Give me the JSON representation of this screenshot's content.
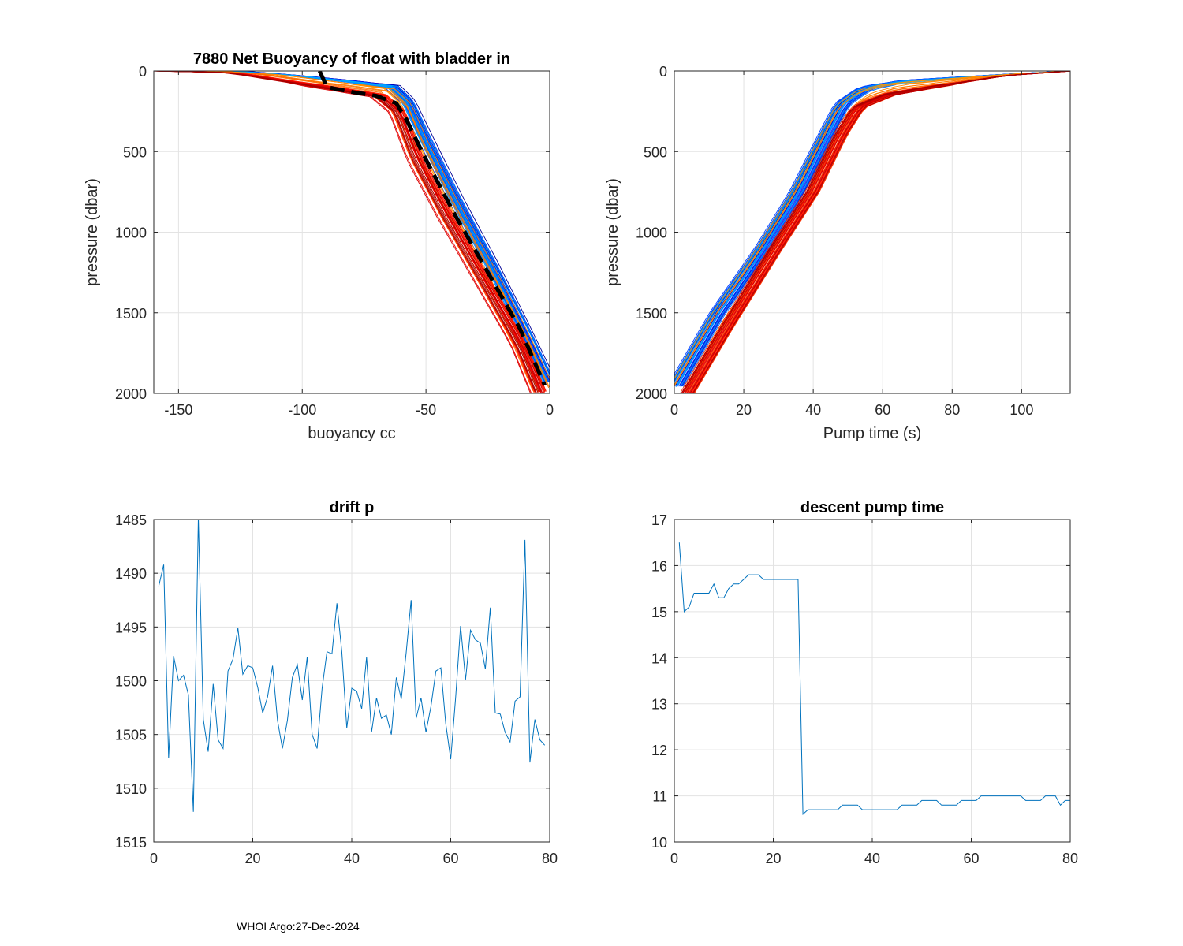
{
  "footer": "WHOI Argo:27-Dec-2024",
  "chart_data": [
    {
      "type": "line",
      "title": "7880 Net Buoyancy of float with bladder in",
      "xlabel": "buoyancy cc",
      "ylabel": "pressure (dbar)",
      "xlim": [
        -160,
        0
      ],
      "ylim": [
        0,
        2000
      ],
      "y_reversed": true,
      "xticks": [
        -150,
        -100,
        -50,
        0
      ],
      "yticks": [
        0,
        500,
        1000,
        1500,
        2000
      ],
      "grid": true,
      "series_description": "~80 profile curves colored by cycle (blue early to red late) with a black dashed reference curve",
      "reference_curve": {
        "name": "reference",
        "color": "#000000",
        "style": "dashed",
        "x": [
          -93,
          -90,
          -80,
          -70,
          -62,
          -58,
          -50,
          -38,
          -25,
          -12,
          -2
        ],
        "y": [
          0,
          100,
          130,
          155,
          200,
          300,
          550,
          900,
          1250,
          1600,
          1950
        ]
      },
      "template_curves": {
        "blue": {
          "x": [
            -125,
            -100,
            -80,
            -63,
            -57,
            -50,
            -37,
            -23,
            -10,
            0
          ],
          "y": [
            0,
            30,
            60,
            90,
            180,
            400,
            800,
            1200,
            1600,
            1920
          ]
        },
        "orange": {
          "x": [
            -160,
            -130,
            -90,
            -70,
            -62,
            -55,
            -43,
            -28,
            -13,
            -5
          ],
          "y": [
            0,
            10,
            110,
            160,
            260,
            550,
            900,
            1300,
            1700,
            2000
          ]
        }
      }
    },
    {
      "type": "line",
      "title": "",
      "xlabel": "Pump time (s)",
      "ylabel": "pressure (dbar)",
      "xlim": [
        0,
        114
      ],
      "ylim": [
        0,
        2000
      ],
      "y_reversed": true,
      "xticks": [
        0,
        20,
        40,
        60,
        80,
        100
      ],
      "yticks": [
        0,
        500,
        1000,
        1500,
        2000
      ],
      "grid": true,
      "series_description": "~80 profile curves colored by cycle (blue early to red late)",
      "template_curves": {
        "blue": {
          "x": [
            0,
            12,
            25,
            35,
            42,
            48,
            55,
            65,
            80,
            100,
            114
          ],
          "y": [
            1950,
            1500,
            1100,
            750,
            450,
            200,
            100,
            60,
            40,
            15,
            0
          ]
        },
        "orange": {
          "x": [
            4,
            15,
            28,
            40,
            48,
            53,
            62,
            75,
            95,
            114
          ],
          "y": [
            2000,
            1600,
            1150,
            750,
            400,
            230,
            150,
            100,
            30,
            0
          ]
        }
      }
    },
    {
      "type": "line",
      "title": "drift p",
      "xlabel": "",
      "ylabel": "",
      "xlim": [
        0,
        80
      ],
      "ylim": [
        1485,
        1515
      ],
      "y_reversed": true,
      "xticks": [
        0,
        20,
        40,
        60,
        80
      ],
      "yticks": [
        1485,
        1490,
        1495,
        1500,
        1505,
        1510,
        1515
      ],
      "grid": true,
      "series": [
        {
          "name": "drift p",
          "color": "#0072BD",
          "x": [
            1,
            2,
            3,
            4,
            5,
            6,
            7,
            8,
            9,
            10,
            11,
            12,
            13,
            14,
            15,
            16,
            17,
            18,
            19,
            20,
            21,
            22,
            23,
            24,
            25,
            26,
            27,
            28,
            29,
            30,
            31,
            32,
            33,
            34,
            35,
            36,
            37,
            38,
            39,
            40,
            41,
            42,
            43,
            44,
            45,
            46,
            47,
            48,
            49,
            50,
            51,
            52,
            53,
            54,
            55,
            56,
            57,
            58,
            59,
            60,
            61,
            62,
            63,
            64,
            65,
            66,
            67,
            68,
            69,
            70,
            71,
            72,
            73,
            74,
            75,
            76,
            77,
            78,
            79
          ],
          "values": [
            1491.2,
            1489.2,
            1507.2,
            1497.7,
            1500.0,
            1499.5,
            1501.3,
            1512.2,
            1484.8,
            1503.6,
            1506.6,
            1500.3,
            1505.5,
            1506.3,
            1499.1,
            1498.0,
            1495.1,
            1499.4,
            1498.6,
            1498.8,
            1500.6,
            1503.0,
            1501.5,
            1498.6,
            1503.7,
            1506.3,
            1503.7,
            1499.7,
            1498.5,
            1501.8,
            1497.8,
            1505.0,
            1506.3,
            1500.7,
            1497.3,
            1497.5,
            1492.8,
            1497.3,
            1504.4,
            1500.7,
            1501.0,
            1502.6,
            1497.8,
            1504.8,
            1501.6,
            1503.5,
            1503.2,
            1505.0,
            1499.7,
            1501.7,
            1497.4,
            1492.5,
            1503.5,
            1501.6,
            1504.8,
            1502.4,
            1499.1,
            1498.8,
            1504.0,
            1507.3,
            1501.5,
            1494.9,
            1499.9,
            1495.3,
            1496.2,
            1496.5,
            1498.9,
            1493.2,
            1503.0,
            1503.1,
            1504.8,
            1505.7,
            1501.9,
            1501.5,
            1486.9,
            1507.6,
            1503.6,
            1505.5,
            1506.0
          ]
        }
      ]
    },
    {
      "type": "line",
      "title": "descent pump time",
      "xlabel": "",
      "ylabel": "",
      "xlim": [
        0,
        80
      ],
      "ylim": [
        10,
        17
      ],
      "xticks": [
        0,
        20,
        40,
        60,
        80
      ],
      "yticks": [
        10,
        11,
        12,
        13,
        14,
        15,
        16,
        17
      ],
      "grid": true,
      "series": [
        {
          "name": "descent pump time",
          "color": "#0072BD",
          "x": [
            1,
            2,
            3,
            4,
            5,
            6,
            7,
            8,
            9,
            10,
            11,
            12,
            13,
            14,
            15,
            16,
            17,
            18,
            19,
            20,
            21,
            22,
            23,
            24,
            25,
            26,
            27,
            28,
            29,
            30,
            31,
            32,
            33,
            34,
            35,
            36,
            37,
            38,
            39,
            40,
            41,
            42,
            43,
            44,
            45,
            46,
            47,
            48,
            49,
            50,
            51,
            52,
            53,
            54,
            55,
            56,
            57,
            58,
            59,
            60,
            61,
            62,
            63,
            64,
            65,
            66,
            67,
            68,
            69,
            70,
            71,
            72,
            73,
            74,
            75,
            76,
            77,
            78,
            79,
            80
          ],
          "values": [
            16.5,
            15.0,
            15.1,
            15.4,
            15.4,
            15.4,
            15.4,
            15.6,
            15.3,
            15.3,
            15.5,
            15.6,
            15.6,
            15.7,
            15.8,
            15.8,
            15.8,
            15.7,
            15.7,
            15.7,
            15.7,
            15.7,
            15.7,
            15.7,
            15.7,
            10.6,
            10.7,
            10.7,
            10.7,
            10.7,
            10.7,
            10.7,
            10.7,
            10.8,
            10.8,
            10.8,
            10.8,
            10.7,
            10.7,
            10.7,
            10.7,
            10.7,
            10.7,
            10.7,
            10.7,
            10.8,
            10.8,
            10.8,
            10.8,
            10.9,
            10.9,
            10.9,
            10.9,
            10.8,
            10.8,
            10.8,
            10.8,
            10.9,
            10.9,
            10.9,
            10.9,
            11.0,
            11.0,
            11.0,
            11.0,
            11.0,
            11.0,
            11.0,
            11.0,
            11.0,
            10.9,
            10.9,
            10.9,
            10.9,
            11.0,
            11.0,
            11.0,
            10.8,
            10.9,
            10.9
          ]
        }
      ]
    }
  ]
}
